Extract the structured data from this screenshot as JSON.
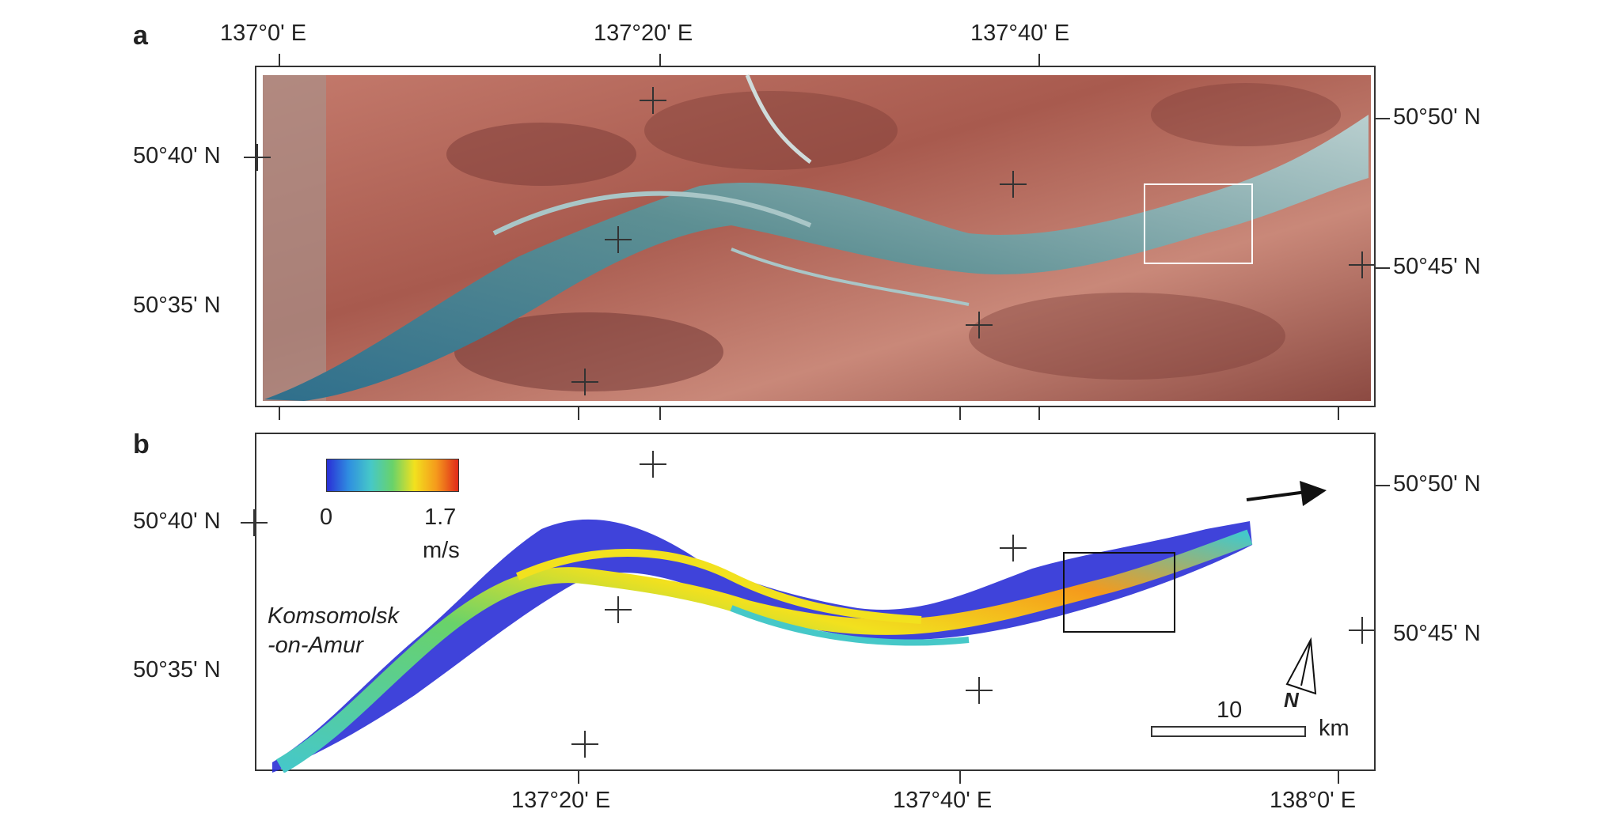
{
  "panels": {
    "a": {
      "label": "a"
    },
    "b": {
      "label": "b"
    }
  },
  "axes": {
    "top_lon": [
      "137°0' E",
      "137°20' E",
      "137°40' E"
    ],
    "bottom_lon": [
      "137°20' E",
      "137°40' E",
      "138°0' E"
    ],
    "left_lat_a": [
      "50°40' N",
      "50°35' N"
    ],
    "right_lat_a": [
      "50°50' N",
      "50°45' N"
    ],
    "left_lat_b": [
      "50°40' N",
      "50°35' N"
    ],
    "right_lat_b": [
      "50°50' N",
      "50°45' N"
    ]
  },
  "legend": {
    "min": "0",
    "max": "1.7",
    "unit": "m/s",
    "colors": [
      "#2a2fd6",
      "#2f8fe0",
      "#46c8c8",
      "#69d26a",
      "#f2e11e",
      "#f59a1c",
      "#e02a1a"
    ]
  },
  "place_label": {
    "line1": "Komsomolsk",
    "line2": "-on-Amur"
  },
  "scalebar": {
    "value": "10",
    "unit": "km"
  },
  "north": {
    "letter": "N"
  },
  "colors": {
    "terrain": "#b96a5c",
    "river": "#3f7b86",
    "sandbar": "#d9e3e1"
  }
}
